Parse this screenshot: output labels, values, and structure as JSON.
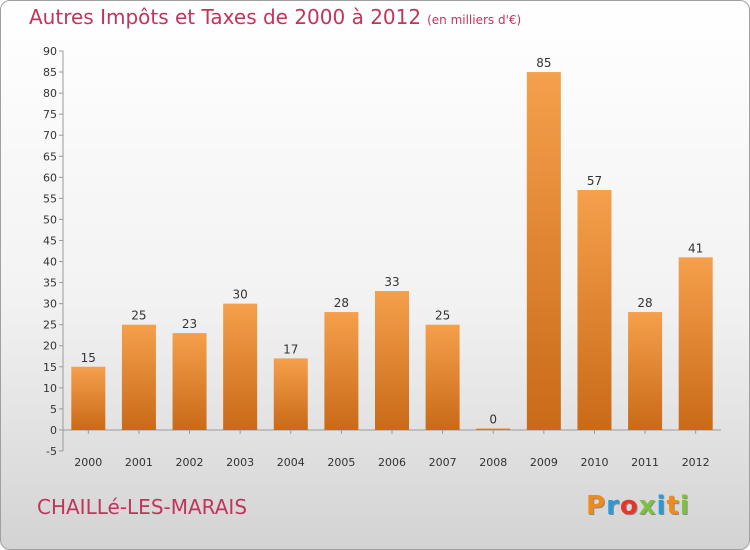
{
  "header": {
    "title": "Autres Impôts et Taxes de 2000 à 2012",
    "unit": "(en milliers d'€)"
  },
  "footer": {
    "location": "CHAILLé-LES-MARAIS",
    "logo": "Proxiti",
    "logo_colors": [
      "#f08a1c",
      "#2a9ad6",
      "#e8352a",
      "#7dc142",
      "#2a9ad6",
      "#f08a1c",
      "#7dc142"
    ]
  },
  "colors": {
    "bar_light": "#f5a04c",
    "bar_dark": "#c96a17",
    "axis": "#9a9a9a",
    "tick_text": "#333333"
  },
  "chart_data": {
    "type": "bar",
    "title": "Autres Impôts et Taxes de 2000 à 2012",
    "subtitle": "(en milliers d'€)",
    "categories": [
      "2000",
      "2001",
      "2002",
      "2003",
      "2004",
      "2005",
      "2006",
      "2007",
      "2008",
      "2009",
      "2010",
      "2011",
      "2012"
    ],
    "values": [
      15,
      25,
      23,
      30,
      17,
      28,
      33,
      25,
      0,
      85,
      57,
      28,
      41
    ],
    "ylim": [
      -5,
      90
    ],
    "yticks": [
      -5,
      0,
      5,
      10,
      15,
      20,
      25,
      30,
      35,
      40,
      45,
      50,
      55,
      60,
      65,
      70,
      75,
      80,
      85,
      90
    ],
    "grid": false,
    "data_labels": true
  }
}
